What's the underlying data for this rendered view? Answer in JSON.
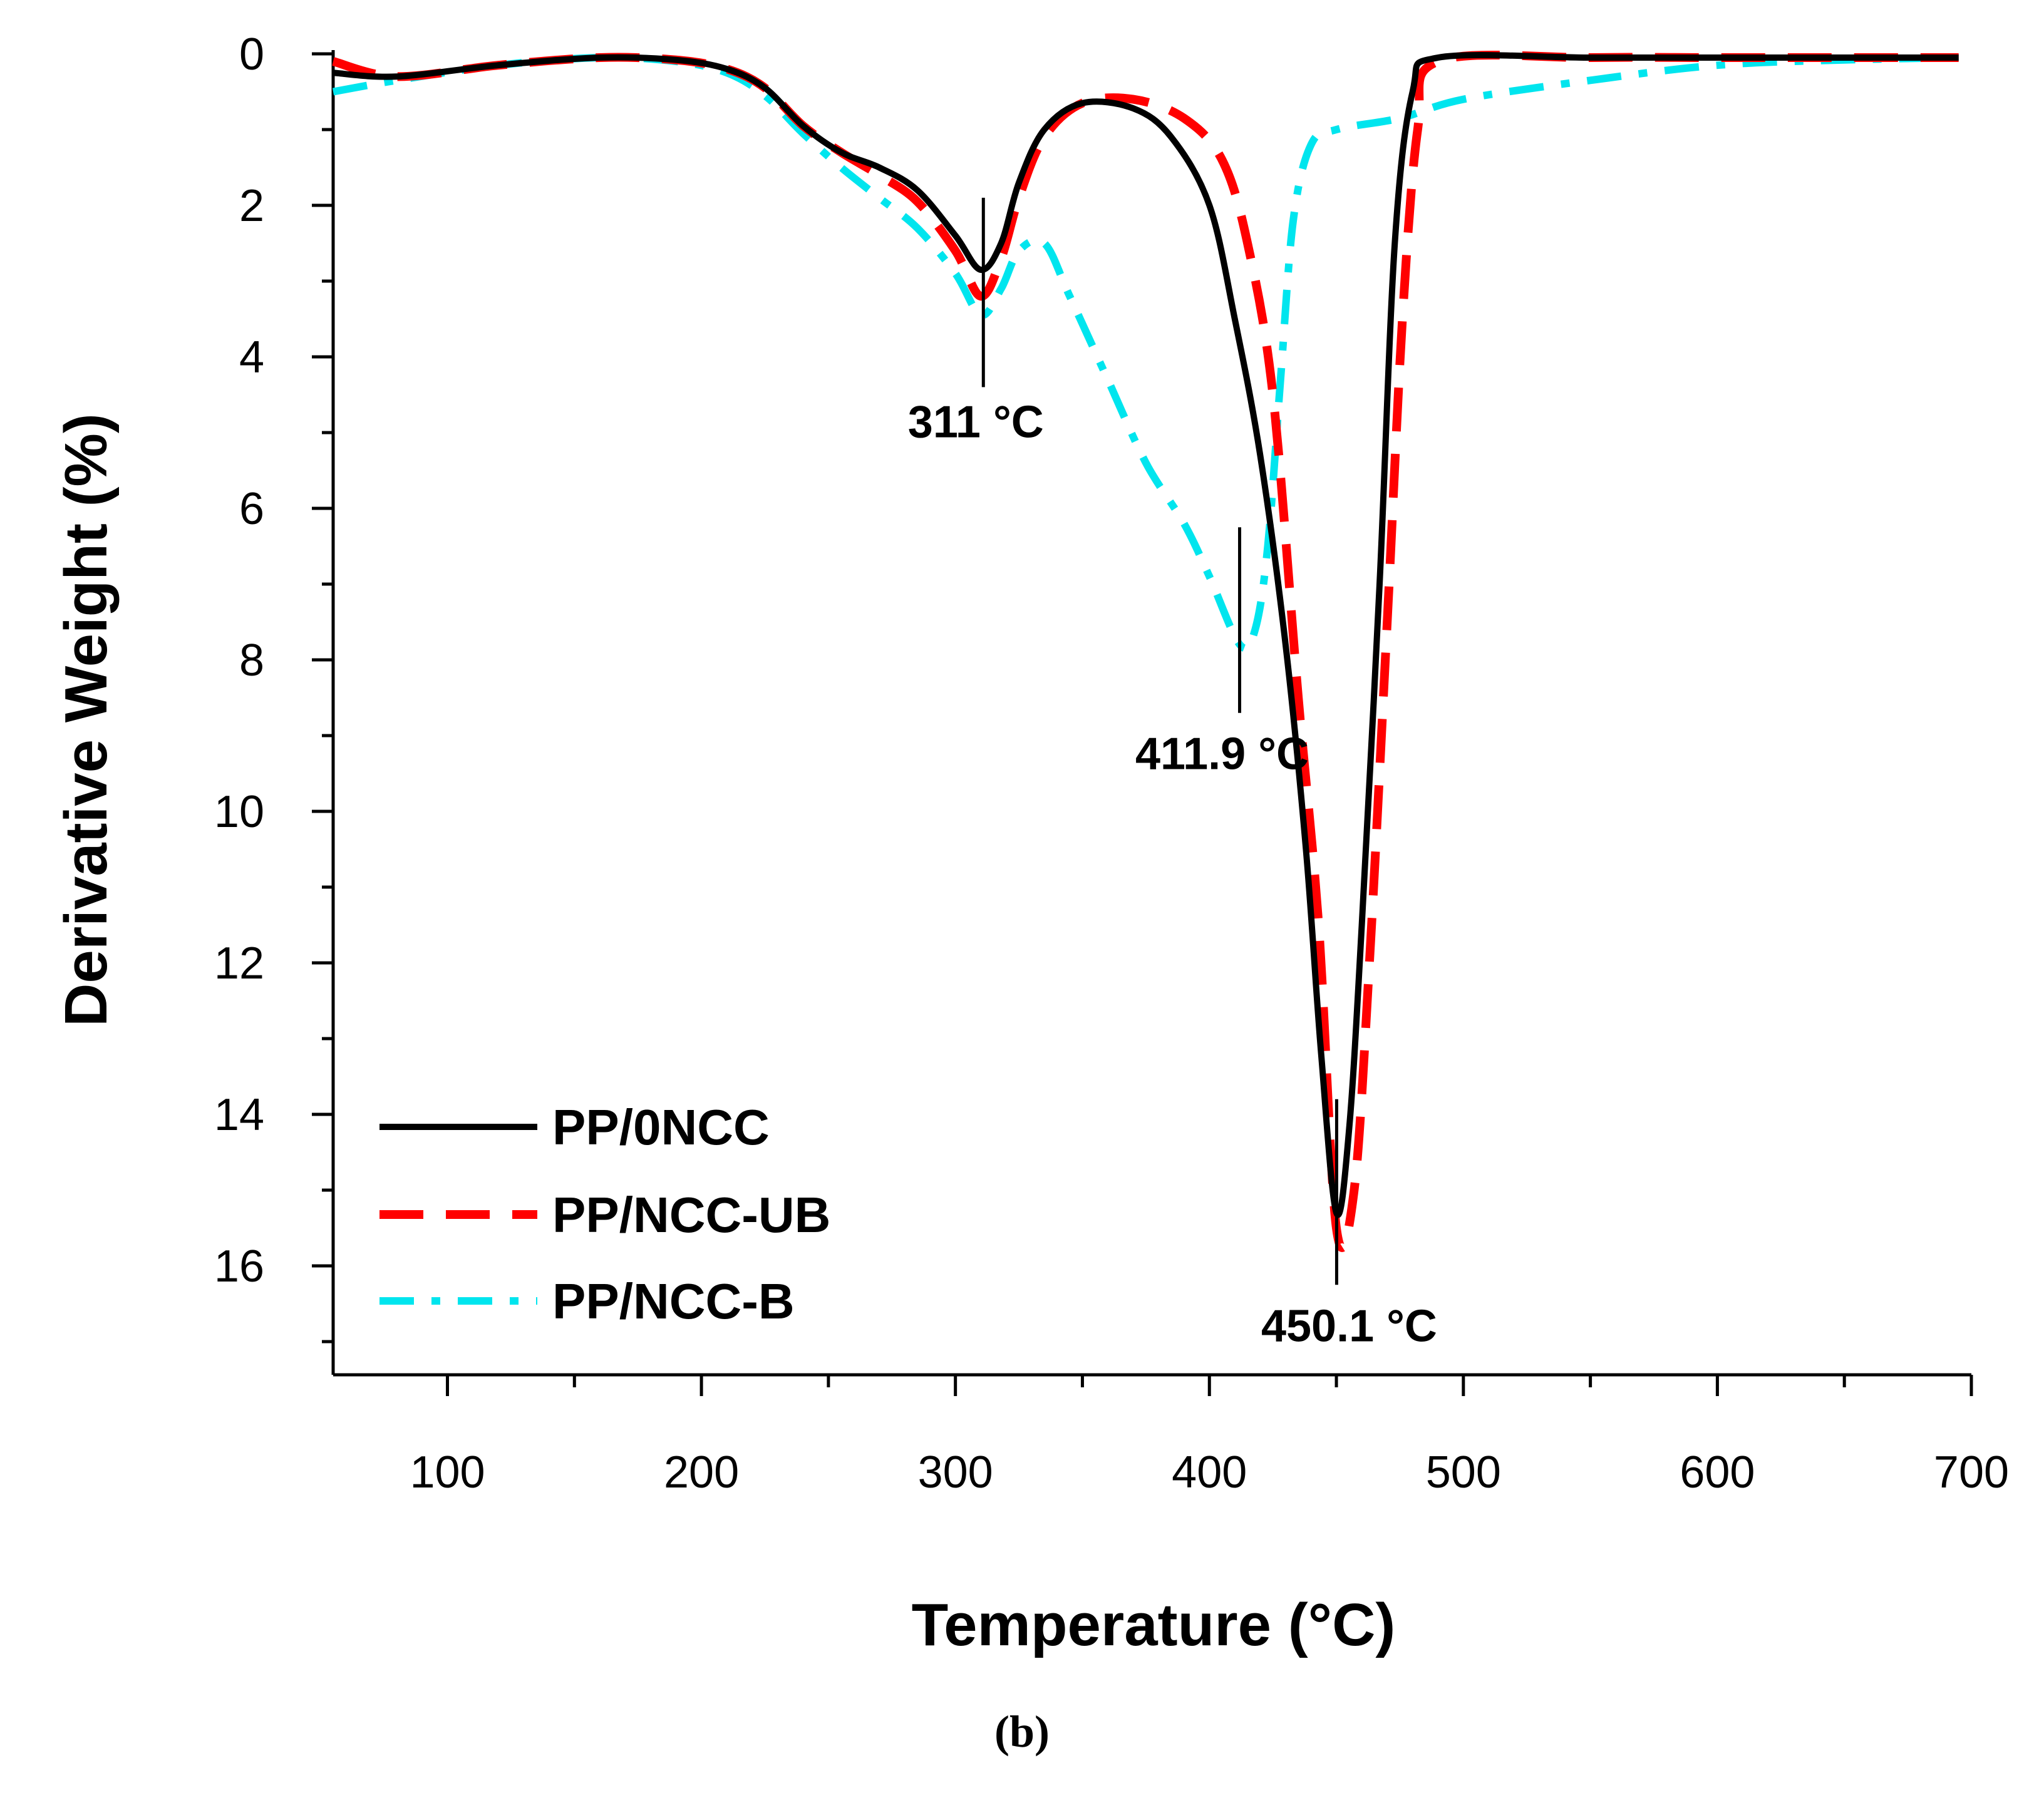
{
  "chart_data": {
    "type": "line",
    "title": "",
    "xlabel": "Temperature (°C)",
    "ylabel": "Derivative Weight (%)",
    "xlim": [
      55,
      700
    ],
    "ylim": [
      0,
      17.5
    ],
    "y_inverted": true,
    "x_ticks": [
      100,
      200,
      300,
      400,
      500,
      600,
      700
    ],
    "x_tick_labels": [
      "100",
      "200",
      "300",
      "400",
      "500",
      "600",
      "700"
    ],
    "y_ticks": [
      0,
      2,
      4,
      6,
      8,
      10,
      12,
      14,
      16
    ],
    "y_tick_labels": [
      "0",
      "2",
      "4",
      "6",
      "8",
      "10",
      "12",
      "14",
      "16"
    ],
    "legend_position": "bottom-left",
    "panel_label": "(b)",
    "series": [
      {
        "name": "PP/0NCC",
        "color": "#000000",
        "style": "solid",
        "points": [
          [
            55,
            0.25
          ],
          [
            80,
            0.3
          ],
          [
            120,
            0.15
          ],
          [
            160,
            0.05
          ],
          [
            190,
            0.08
          ],
          [
            210,
            0.2
          ],
          [
            225,
            0.45
          ],
          [
            240,
            0.95
          ],
          [
            255,
            1.3
          ],
          [
            270,
            1.5
          ],
          [
            285,
            1.8
          ],
          [
            300,
            2.4
          ],
          [
            310,
            2.85
          ],
          [
            318,
            2.5
          ],
          [
            325,
            1.7
          ],
          [
            335,
            1.0
          ],
          [
            350,
            0.65
          ],
          [
            370,
            0.72
          ],
          [
            385,
            1.1
          ],
          [
            400,
            2.0
          ],
          [
            410,
            3.5
          ],
          [
            420,
            5.3
          ],
          [
            430,
            7.8
          ],
          [
            438,
            10.5
          ],
          [
            444,
            13.2
          ],
          [
            450,
            15.3
          ],
          [
            455,
            14.2
          ],
          [
            460,
            11.5
          ],
          [
            467,
            7.0
          ],
          [
            473,
            2.5
          ],
          [
            480,
            0.5
          ],
          [
            490,
            0.05
          ],
          [
            550,
            0.05
          ],
          [
            600,
            0.05
          ],
          [
            650,
            0.05
          ],
          [
            695,
            0.05
          ]
        ]
      },
      {
        "name": "PP/NCC-UB",
        "color": "#ff0000",
        "style": "dashed",
        "points": [
          [
            55,
            0.1
          ],
          [
            80,
            0.3
          ],
          [
            120,
            0.15
          ],
          [
            160,
            0.05
          ],
          [
            190,
            0.08
          ],
          [
            210,
            0.2
          ],
          [
            225,
            0.45
          ],
          [
            240,
            0.95
          ],
          [
            255,
            1.3
          ],
          [
            270,
            1.6
          ],
          [
            285,
            1.95
          ],
          [
            300,
            2.6
          ],
          [
            310,
            3.2
          ],
          [
            318,
            2.7
          ],
          [
            325,
            1.9
          ],
          [
            335,
            1.1
          ],
          [
            350,
            0.65
          ],
          [
            370,
            0.6
          ],
          [
            390,
            0.85
          ],
          [
            405,
            1.4
          ],
          [
            415,
            2.5
          ],
          [
            425,
            4.5
          ],
          [
            435,
            8.5
          ],
          [
            443,
            11.5
          ],
          [
            450,
            15.5
          ],
          [
            457,
            15.0
          ],
          [
            463,
            12.0
          ],
          [
            470,
            7.5
          ],
          [
            476,
            3.5
          ],
          [
            482,
            1.0
          ],
          [
            490,
            0.1
          ],
          [
            550,
            0.05
          ],
          [
            600,
            0.05
          ],
          [
            650,
            0.05
          ],
          [
            695,
            0.05
          ]
        ]
      },
      {
        "name": "PP/NCC-B",
        "color": "#00e5ee",
        "style": "dashdot",
        "points": [
          [
            55,
            0.5
          ],
          [
            80,
            0.35
          ],
          [
            120,
            0.15
          ],
          [
            160,
            0.05
          ],
          [
            190,
            0.1
          ],
          [
            210,
            0.25
          ],
          [
            225,
            0.55
          ],
          [
            240,
            1.05
          ],
          [
            255,
            1.5
          ],
          [
            270,
            1.9
          ],
          [
            285,
            2.3
          ],
          [
            300,
            2.9
          ],
          [
            310,
            3.45
          ],
          [
            318,
            3.1
          ],
          [
            325,
            2.6
          ],
          [
            335,
            2.5
          ],
          [
            345,
            3.2
          ],
          [
            360,
            4.3
          ],
          [
            375,
            5.4
          ],
          [
            390,
            6.2
          ],
          [
            400,
            6.9
          ],
          [
            412,
            7.8
          ],
          [
            418,
            7.6
          ],
          [
            423,
            6.5
          ],
          [
            428,
            4.3
          ],
          [
            433,
            2.2
          ],
          [
            440,
            1.2
          ],
          [
            450,
            1.0
          ],
          [
            475,
            0.85
          ],
          [
            500,
            0.6
          ],
          [
            550,
            0.35
          ],
          [
            600,
            0.15
          ],
          [
            650,
            0.08
          ],
          [
            695,
            0.05
          ]
        ]
      }
    ],
    "annotations": [
      {
        "text": "311 °C",
        "x": 311,
        "y_top": 1.9,
        "y_bottom": 4.4
      },
      {
        "text": "411.9 °C",
        "x": 411.9,
        "y_top": 6.25,
        "y_bottom": 8.7
      },
      {
        "text": "450.1 °C",
        "x": 450.1,
        "y_top": 13.8,
        "y_bottom": 16.25
      }
    ]
  }
}
